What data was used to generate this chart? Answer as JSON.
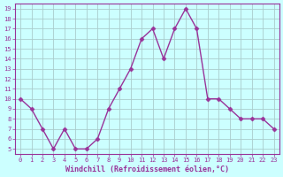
{
  "x": [
    0,
    1,
    2,
    3,
    4,
    5,
    6,
    7,
    8,
    9,
    10,
    11,
    12,
    13,
    14,
    15,
    16,
    17,
    18,
    19,
    20,
    21,
    22,
    23
  ],
  "y": [
    10,
    9,
    7,
    5,
    7,
    5,
    5,
    6,
    9,
    11,
    13,
    16,
    17,
    14,
    17,
    19,
    17,
    10,
    10,
    9,
    8,
    8,
    8,
    7
  ],
  "line_color": "#993399",
  "marker": "D",
  "marker_size": 2.5,
  "bg_color": "#ccffff",
  "grid_color": "#aacccc",
  "xlabel": "Windchill (Refroidissement éolien,°C)",
  "tick_color": "#993399",
  "ylabel_ticks": [
    5,
    6,
    7,
    8,
    9,
    10,
    11,
    12,
    13,
    14,
    15,
    16,
    17,
    18,
    19
  ],
  "xlim": [
    -0.5,
    23.5
  ],
  "ylim": [
    4.5,
    19.5
  ],
  "spine_color": "#993399",
  "figsize": [
    3.2,
    2.0
  ],
  "dpi": 100
}
